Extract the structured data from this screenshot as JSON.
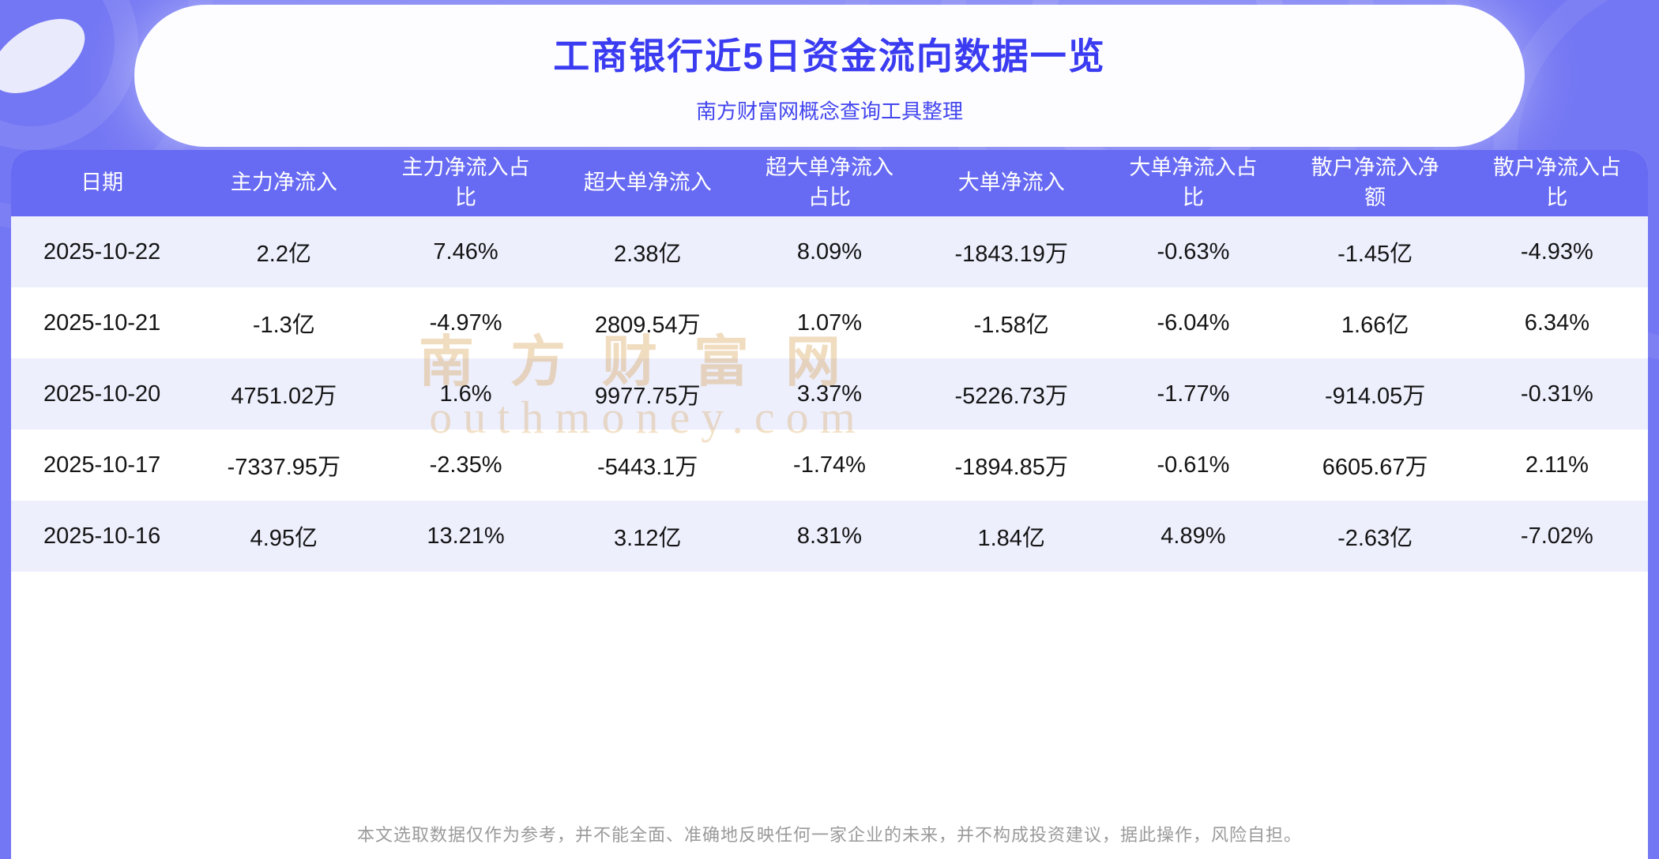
{
  "page": {
    "title": "工商银行近5日资金流向数据一览",
    "subtitle": "南方财富网概念查询工具整理",
    "disclaimer": "本文选取数据仅作为参考，并不能全面、准确地反映任何一家企业的未来，并不构成投资建议，据此操作，风险自担。",
    "watermark": {
      "line1": "南方财富网",
      "line2": "outhmoney.com"
    }
  },
  "colors": {
    "background_purple": "#7477f3",
    "header_bar": "#676af2",
    "title_text": "#3b3cf1",
    "row_alternate": "#edeffd",
    "watermark_gold": "#d9a85f"
  },
  "chart_data": {
    "type": "table",
    "title": "工商银行近5日资金流向数据一览",
    "columns": [
      "日期",
      "主力净流入",
      "主力净流入占比",
      "超大单净流入",
      "超大单净流入占比",
      "大单净流入",
      "大单净流入占比",
      "散户净流入净额",
      "散户净流入占比"
    ],
    "rows": [
      [
        "2025-10-22",
        "2.2亿",
        "7.46%",
        "2.38亿",
        "8.09%",
        "-1843.19万",
        "-0.63%",
        "-1.45亿",
        "-4.93%"
      ],
      [
        "2025-10-21",
        "-1.3亿",
        "-4.97%",
        "2809.54万",
        "1.07%",
        "-1.58亿",
        "-6.04%",
        "1.66亿",
        "6.34%"
      ],
      [
        "2025-10-20",
        "4751.02万",
        "1.6%",
        "9977.75万",
        "3.37%",
        "-5226.73万",
        "-1.77%",
        "-914.05万",
        "-0.31%"
      ],
      [
        "2025-10-17",
        "-7337.95万",
        "-2.35%",
        "-5443.1万",
        "-1.74%",
        "-1894.85万",
        "-0.61%",
        "6605.67万",
        "2.11%"
      ],
      [
        "2025-10-16",
        "4.95亿",
        "13.21%",
        "3.12亿",
        "8.31%",
        "1.84亿",
        "4.89%",
        "-2.63亿",
        "-7.02%"
      ]
    ]
  }
}
